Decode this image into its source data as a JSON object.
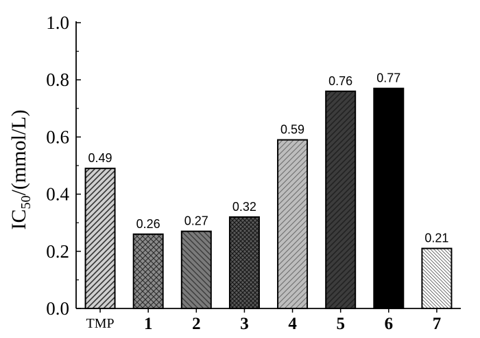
{
  "chart_data": {
    "type": "bar",
    "categories": [
      "TMP",
      "1",
      "2",
      "3",
      "4",
      "5",
      "6",
      "7"
    ],
    "values": [
      0.49,
      0.26,
      0.27,
      0.32,
      0.59,
      0.76,
      0.77,
      0.21
    ],
    "data_labels": [
      "0.49",
      "0.26",
      "0.27",
      "0.32",
      "0.59",
      "0.76",
      "0.77",
      "0.21"
    ],
    "ylabel": {
      "base": "IC",
      "subscript": "50",
      "suffix": "/(mmol/L)"
    },
    "ylim": [
      0,
      1.0
    ],
    "yticks": [
      0.0,
      0.2,
      0.4,
      0.6,
      0.8,
      1.0
    ],
    "ytick_labels": [
      "0.0",
      "0.2",
      "0.4",
      "0.6",
      "0.8",
      "1.0"
    ],
    "grid": false,
    "bar_styles": [
      {
        "fill": "#cfcfcf",
        "pattern": "diag-up",
        "pattern_color": "#333333"
      },
      {
        "fill": "#8a8a8a",
        "pattern": "crosshatch",
        "pattern_color": "#2a2a2a"
      },
      {
        "fill": "#7a7a7a",
        "pattern": "diag-down",
        "pattern_color": "#3a3a3a"
      },
      {
        "fill": "#5a5a5a",
        "pattern": "crosshatch-dense",
        "pattern_color": "#1a1a1a"
      },
      {
        "fill": "#bdbdbd",
        "pattern": "diag-up-wide",
        "pattern_color": "#6a6a6a"
      },
      {
        "fill": "#3c3c3c",
        "pattern": "diag-up",
        "pattern_color": "#222222"
      },
      {
        "fill": "#000000",
        "pattern": "none",
        "pattern_color": "#000000"
      },
      {
        "fill": "#ffffff",
        "pattern": "diag-down-fine",
        "pattern_color": "#555555"
      }
    ]
  }
}
